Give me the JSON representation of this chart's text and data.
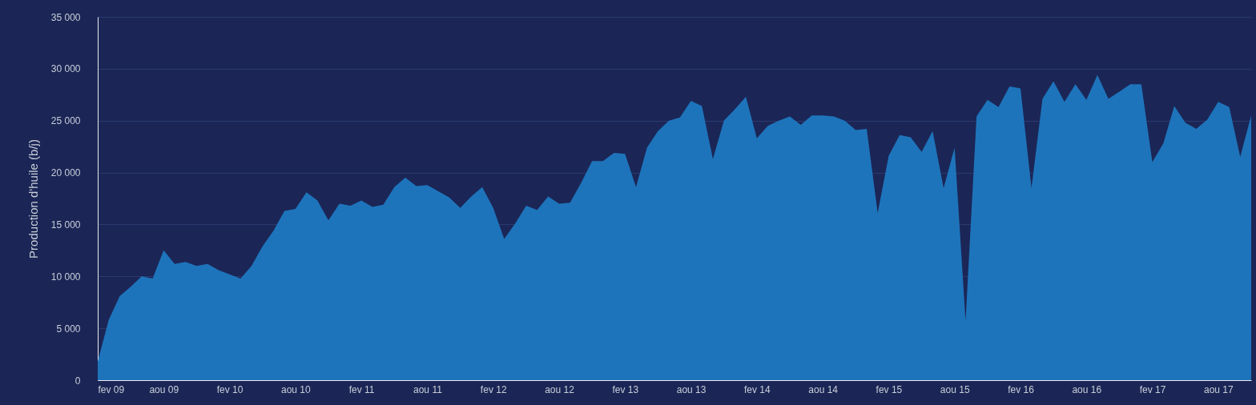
{
  "chart_data": {
    "type": "area",
    "ylabel": "Production d'huile (b/j)",
    "x": [
      "2009-02",
      "2009-03",
      "2009-04",
      "2009-05",
      "2009-06",
      "2009-07",
      "2009-08",
      "2009-09",
      "2009-10",
      "2009-11",
      "2009-12",
      "2010-01",
      "2010-02",
      "2010-03",
      "2010-04",
      "2010-05",
      "2010-06",
      "2010-07",
      "2010-08",
      "2010-09",
      "2010-10",
      "2010-11",
      "2010-12",
      "2011-01",
      "2011-02",
      "2011-03",
      "2011-04",
      "2011-05",
      "2011-06",
      "2011-07",
      "2011-08",
      "2011-09",
      "2011-10",
      "2011-11",
      "2011-12",
      "2012-01",
      "2012-02",
      "2012-03",
      "2012-04",
      "2012-05",
      "2012-06",
      "2012-07",
      "2012-08",
      "2012-09",
      "2012-10",
      "2012-11",
      "2012-12",
      "2013-01",
      "2013-02",
      "2013-03",
      "2013-04",
      "2013-05",
      "2013-06",
      "2013-07",
      "2013-08",
      "2013-09",
      "2013-10",
      "2013-11",
      "2013-12",
      "2014-01",
      "2014-02",
      "2014-03",
      "2014-04",
      "2014-05",
      "2014-06",
      "2014-07",
      "2014-08",
      "2014-09",
      "2014-10",
      "2014-11",
      "2014-12",
      "2015-01",
      "2015-02",
      "2015-03",
      "2015-04",
      "2015-05",
      "2015-06",
      "2015-07",
      "2015-08",
      "2015-09",
      "2015-10",
      "2015-11",
      "2015-12",
      "2016-01",
      "2016-02",
      "2016-03",
      "2016-04",
      "2016-05",
      "2016-06",
      "2016-07",
      "2016-08",
      "2016-09",
      "2016-10",
      "2016-11",
      "2016-12",
      "2017-01",
      "2017-02",
      "2017-03",
      "2017-04",
      "2017-05",
      "2017-06",
      "2017-07",
      "2017-08",
      "2017-09",
      "2017-10",
      "2017-11"
    ],
    "series": [
      {
        "color": "#1e74bb",
        "values": [
          1800,
          5800,
          8100,
          9000,
          10000,
          9800,
          12500,
          11200,
          11400,
          11000,
          11200,
          10600,
          10200,
          9800,
          11000,
          12900,
          14400,
          16300,
          16500,
          18100,
          17300,
          15400,
          17000,
          16800,
          17300,
          16700,
          16900,
          18600,
          19500,
          18700,
          18800,
          18200,
          17600,
          16600,
          17700,
          18600,
          16600,
          13600,
          15100,
          16800,
          16400,
          17700,
          17000,
          17100,
          19000,
          21100,
          21100,
          21900,
          21800,
          18600,
          22400,
          24000,
          25000,
          25300,
          26900,
          26400,
          21300,
          25000,
          26100,
          27300,
          23300,
          24500,
          25000,
          25400,
          24600,
          25500,
          25500,
          25400,
          25000,
          24100,
          24200,
          16100,
          21600,
          23600,
          23400,
          22000,
          24000,
          18500,
          22400,
          5700,
          25400,
          27000,
          26300,
          28300,
          28100,
          18500,
          27100,
          28800,
          26800,
          28500,
          27000,
          29400,
          27100,
          27800,
          28500,
          28500,
          21000,
          22800,
          26400,
          24800,
          24200,
          25100,
          26800,
          26300,
          21500,
          25500
        ]
      }
    ],
    "xlim": [
      "2009-02",
      "2017-11"
    ],
    "xticks": [
      {
        "value": "2009-02",
        "label": "fev 09"
      },
      {
        "value": "2009-08",
        "label": "aou 09"
      },
      {
        "value": "2010-02",
        "label": "fev 10"
      },
      {
        "value": "2010-08",
        "label": "aou 10"
      },
      {
        "value": "2011-02",
        "label": "fev 11"
      },
      {
        "value": "2011-08",
        "label": "aou 11"
      },
      {
        "value": "2012-02",
        "label": "fev 12"
      },
      {
        "value": "2012-08",
        "label": "aou 12"
      },
      {
        "value": "2013-02",
        "label": "fev 13"
      },
      {
        "value": "2013-08",
        "label": "aou 13"
      },
      {
        "value": "2014-02",
        "label": "fev 14"
      },
      {
        "value": "2014-08",
        "label": "aou 14"
      },
      {
        "value": "2015-02",
        "label": "fev 15"
      },
      {
        "value": "2015-08",
        "label": "aou 15"
      },
      {
        "value": "2016-02",
        "label": "fev 16"
      },
      {
        "value": "2016-08",
        "label": "aou 16"
      },
      {
        "value": "2017-02",
        "label": "fev 17"
      },
      {
        "value": "2017-08",
        "label": "aou 17"
      }
    ],
    "ylim": [
      0,
      35000
    ],
    "yticks": [
      {
        "value": 0,
        "label": "0"
      },
      {
        "value": 5000,
        "label": "5 000"
      },
      {
        "value": 10000,
        "label": "10 000"
      },
      {
        "value": 15000,
        "label": "15 000"
      },
      {
        "value": 20000,
        "label": "20 000"
      },
      {
        "value": 25000,
        "label": "25 000"
      },
      {
        "value": 30000,
        "label": "30 000"
      },
      {
        "value": 35000,
        "label": "35 000"
      }
    ],
    "grid": "y"
  }
}
